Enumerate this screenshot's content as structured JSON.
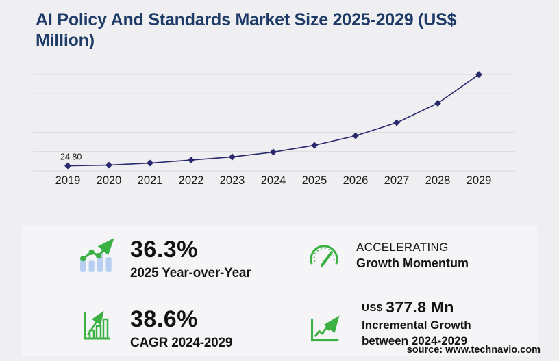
{
  "title": {
    "text": "AI Policy And Standards Market Size 2025-2029 (US$ Million)",
    "lines": [
      "AI Policy And Standards Market Size 2025-2029 (US$",
      "Million)"
    ]
  },
  "chart_data": {
    "type": "line",
    "x": [
      "2019",
      "2020",
      "2021",
      "2022",
      "2023",
      "2024",
      "2025",
      "2026",
      "2027",
      "2028",
      "2029"
    ],
    "values": [
      24.8,
      28.2,
      38.2,
      53.0,
      68.4,
      91.9,
      125.1,
      171.3,
      235.0,
      329.9,
      469.7
    ],
    "point_label": {
      "index": 0,
      "text": "24.80"
    },
    "ylabel": "",
    "xlabel": "",
    "ylim": [
      0,
      470
    ],
    "gridlines": 6,
    "legend": "none",
    "marker": "diamond"
  },
  "stats": {
    "yoy": {
      "value": "36.3%",
      "label": "2025 Year-over-Year"
    },
    "cagr": {
      "value": "38.6%",
      "label": "CAGR 2024-2029"
    },
    "momentum": {
      "line1": "ACCELERATING",
      "line2": "Growth Momentum"
    },
    "incremental": {
      "currency": "US$",
      "value": "377.8 Mn",
      "line1": "Incremental Growth",
      "line2": "between 2024-2029"
    }
  },
  "source": "source: www.technavio.com",
  "colors": {
    "title_navy": "#1e3a66",
    "line_navy": "#29296d",
    "accent_green": "#3bb143",
    "bar_light_blue": "#b7d0f1",
    "gridline": "#d8d8db",
    "page_bg": "#efeff2",
    "card_bg": "#f5f5f8",
    "text": "#141414"
  }
}
